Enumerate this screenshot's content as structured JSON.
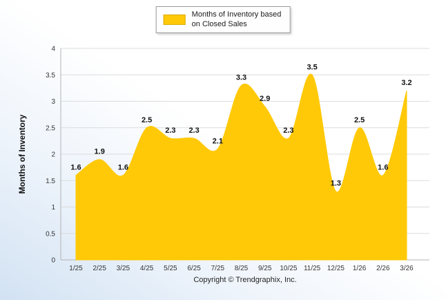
{
  "legend": {
    "line1": "Months of Inventory based",
    "line2": "on Closed Sales"
  },
  "y_axis_title": "Months of Inventory",
  "footer": "Copyright © Trendgraphix, Inc.",
  "colors": {
    "area_fill": "#FFC907",
    "grid_line": "#dcdcdc",
    "axis_line": "#b3b3b3",
    "tick_text": "#333333",
    "data_label": "#111111"
  },
  "chart_data": {
    "type": "area",
    "title": "Months of Inventory based on Closed Sales",
    "xlabel": "",
    "ylabel": "Months of Inventory",
    "categories": [
      "1/25",
      "2/25",
      "3/25",
      "4/25",
      "5/25",
      "6/25",
      "7/25",
      "8/25",
      "9/25",
      "10/25",
      "11/25",
      "12/25",
      "1/26",
      "2/26",
      "3/26"
    ],
    "values": [
      1.6,
      1.9,
      1.6,
      2.5,
      2.3,
      2.3,
      2.1,
      3.3,
      2.9,
      2.3,
      3.5,
      1.3,
      2.5,
      1.6,
      3.2
    ],
    "ylim": [
      0,
      4
    ],
    "y_tick_step": 0.5,
    "grid": true,
    "legend_position": "top-center",
    "smooth": true
  }
}
